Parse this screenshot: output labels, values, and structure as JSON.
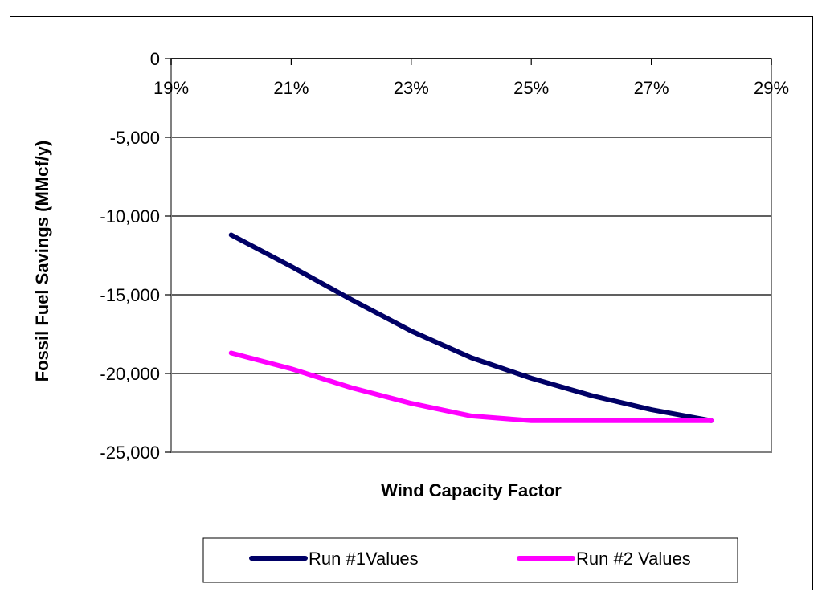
{
  "chart_data": {
    "type": "line",
    "xlabel": "Wind Capacity Factor",
    "ylabel": "Fossil Fuel Savings (MMcf/y)",
    "xlim": [
      0.19,
      0.29
    ],
    "ylim": [
      -25000,
      0
    ],
    "x_ticks": [
      {
        "value": 0.19,
        "label": "19%"
      },
      {
        "value": 0.21,
        "label": "21%"
      },
      {
        "value": 0.23,
        "label": "23%"
      },
      {
        "value": 0.25,
        "label": "25%"
      },
      {
        "value": 0.27,
        "label": "27%"
      },
      {
        "value": 0.29,
        "label": "29%"
      }
    ],
    "y_ticks": [
      {
        "value": 0,
        "label": "0"
      },
      {
        "value": -5000,
        "label": "-5,000"
      },
      {
        "value": -10000,
        "label": "-10,000"
      },
      {
        "value": -15000,
        "label": "-15,000"
      },
      {
        "value": -20000,
        "label": "-20,000"
      },
      {
        "value": -25000,
        "label": "-25,000"
      }
    ],
    "grid": true,
    "x_axis_position": "top",
    "legend_position": "bottom",
    "series": [
      {
        "name": "Run #1Values",
        "color": "#000066",
        "x": [
          0.2,
          0.21,
          0.22,
          0.23,
          0.24,
          0.25,
          0.26,
          0.27,
          0.28
        ],
        "y": [
          -11200,
          -13200,
          -15300,
          -17300,
          -19000,
          -20300,
          -21400,
          -22300,
          -23000
        ]
      },
      {
        "name": "Run #2 Values",
        "color": "#FF00FF",
        "x": [
          0.2,
          0.21,
          0.22,
          0.23,
          0.24,
          0.25,
          0.26,
          0.27,
          0.28
        ],
        "y": [
          -18700,
          -19700,
          -20900,
          -21900,
          -22700,
          -23000,
          -23000,
          -23000,
          -23000
        ]
      }
    ]
  }
}
